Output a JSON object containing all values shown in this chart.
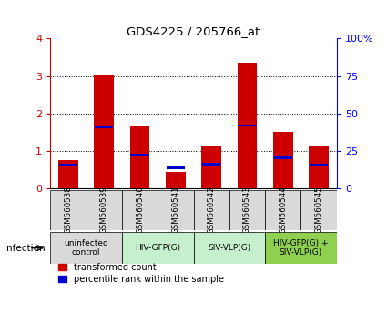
{
  "title": "GDS4225 / 205766_at",
  "samples": [
    "GSM560538",
    "GSM560539",
    "GSM560540",
    "GSM560541",
    "GSM560542",
    "GSM560543",
    "GSM560544",
    "GSM560545"
  ],
  "red_values": [
    0.75,
    3.05,
    1.65,
    0.45,
    1.15,
    3.35,
    1.5,
    1.15
  ],
  "blue_values": [
    0.62,
    1.65,
    0.88,
    0.55,
    0.65,
    1.68,
    0.82,
    0.62
  ],
  "groups": [
    {
      "label": "uninfected\ncontrol",
      "start": 0,
      "end": 2,
      "color": "#d9d9d9"
    },
    {
      "label": "HIV-GFP(G)",
      "start": 2,
      "end": 4,
      "color": "#c6efce"
    },
    {
      "label": "SIV-VLP(G)",
      "start": 4,
      "end": 6,
      "color": "#c6efce"
    },
    {
      "label": "HIV-GFP(G) +\nSIV-VLP(G)",
      "start": 6,
      "end": 8,
      "color": "#90d050"
    }
  ],
  "ylim": [
    0,
    4
  ],
  "y2lim": [
    0,
    100
  ],
  "yticks": [
    0,
    1,
    2,
    3,
    4
  ],
  "y2ticks": [
    0,
    25,
    50,
    75,
    100
  ],
  "y2ticklabels": [
    "0",
    "25",
    "50",
    "75",
    "100%"
  ],
  "red_color": "#cc0000",
  "blue_color": "#0000cc",
  "bg_color": "#ffffff",
  "label_infection": "infection",
  "legend_red": "transformed count",
  "legend_blue": "percentile rank within the sample",
  "bar_width": 0.55,
  "blue_bar_height": 0.07
}
